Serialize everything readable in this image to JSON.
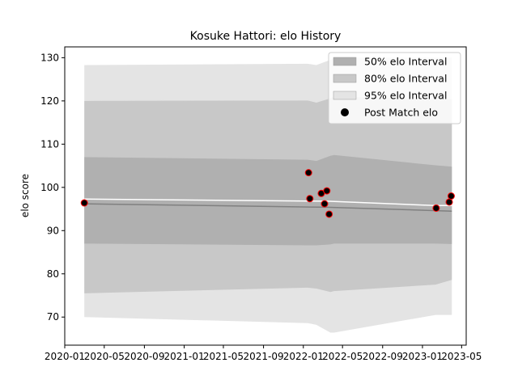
{
  "chart_data": {
    "type": "line",
    "title": "Kosuke Hattori: elo History",
    "xlabel": "",
    "ylabel": "elo score",
    "xlim": [
      "2020-01-01",
      "2023-05-15"
    ],
    "ylim": [
      63.5,
      132.5
    ],
    "x_ticks": [
      "2020-01",
      "2020-05",
      "2020-09",
      "2021-01",
      "2021-05",
      "2021-09",
      "2022-01",
      "2022-05",
      "2022-09",
      "2023-01",
      "2023-05"
    ],
    "y_ticks": [
      70,
      80,
      90,
      100,
      110,
      120,
      130
    ],
    "grid": false,
    "legend_position": "top-right",
    "legend": [
      {
        "label": "50% elo Interval",
        "color": "#b0b0b0",
        "kind": "patch"
      },
      {
        "label": "80% elo Interval",
        "color": "#c8c8c8",
        "kind": "patch"
      },
      {
        "label": "95% elo Interval",
        "color": "#e4e4e4",
        "kind": "patch"
      },
      {
        "label": "Post Match elo",
        "color": "#000000",
        "kind": "marker"
      }
    ],
    "interval_dates": [
      "2020-03-01",
      "2022-01-14",
      "2022-02-10",
      "2022-03-25",
      "2022-04-05",
      "2023-02-10",
      "2023-04-01"
    ],
    "intervals": {
      "p95": {
        "lower": [
          70,
          68.6,
          68.2,
          66.4,
          66.4,
          70.5,
          70.5
        ],
        "upper": [
          128.3,
          128.6,
          128.3,
          129.5,
          130.0,
          130.0,
          130.0
        ]
      },
      "p80": {
        "lower": [
          75.5,
          76.8,
          76.6,
          75.8,
          76.0,
          77.5,
          78.6
        ],
        "upper": [
          120.0,
          120.1,
          119.6,
          120.6,
          121.0,
          120.4,
          120.4
        ]
      },
      "p50": {
        "lower": [
          87.0,
          86.6,
          86.6,
          86.8,
          87.0,
          87.0,
          86.9
        ],
        "upper": [
          107.0,
          106.4,
          106.1,
          107.3,
          107.5,
          105.1,
          104.8
        ]
      }
    },
    "median_line": {
      "x": [
        "2020-03-01",
        "2022-03-15",
        "2023-04-01"
      ],
      "y": [
        96.2,
        95.4,
        94.5
      ],
      "color": "#808080"
    },
    "mean_line": {
      "x": [
        "2020-03-01",
        "2022-03-15",
        "2023-02-10",
        "2023-04-01"
      ],
      "y": [
        97.3,
        96.8,
        95.8,
        95.8
      ],
      "color": "#ffffff"
    },
    "points": [
      {
        "x": "2020-03-01",
        "y": 96.4
      },
      {
        "x": "2022-01-17",
        "y": 103.4
      },
      {
        "x": "2022-01-21",
        "y": 97.4
      },
      {
        "x": "2022-02-25",
        "y": 98.6
      },
      {
        "x": "2022-03-07",
        "y": 96.2
      },
      {
        "x": "2022-03-14",
        "y": 99.2
      },
      {
        "x": "2022-03-21",
        "y": 93.8
      },
      {
        "x": "2023-02-12",
        "y": 95.2
      },
      {
        "x": "2023-03-24",
        "y": 96.6
      },
      {
        "x": "2023-03-30",
        "y": 98.0
      }
    ],
    "point_fill": "#000000",
    "point_edge": "#ff0000"
  }
}
